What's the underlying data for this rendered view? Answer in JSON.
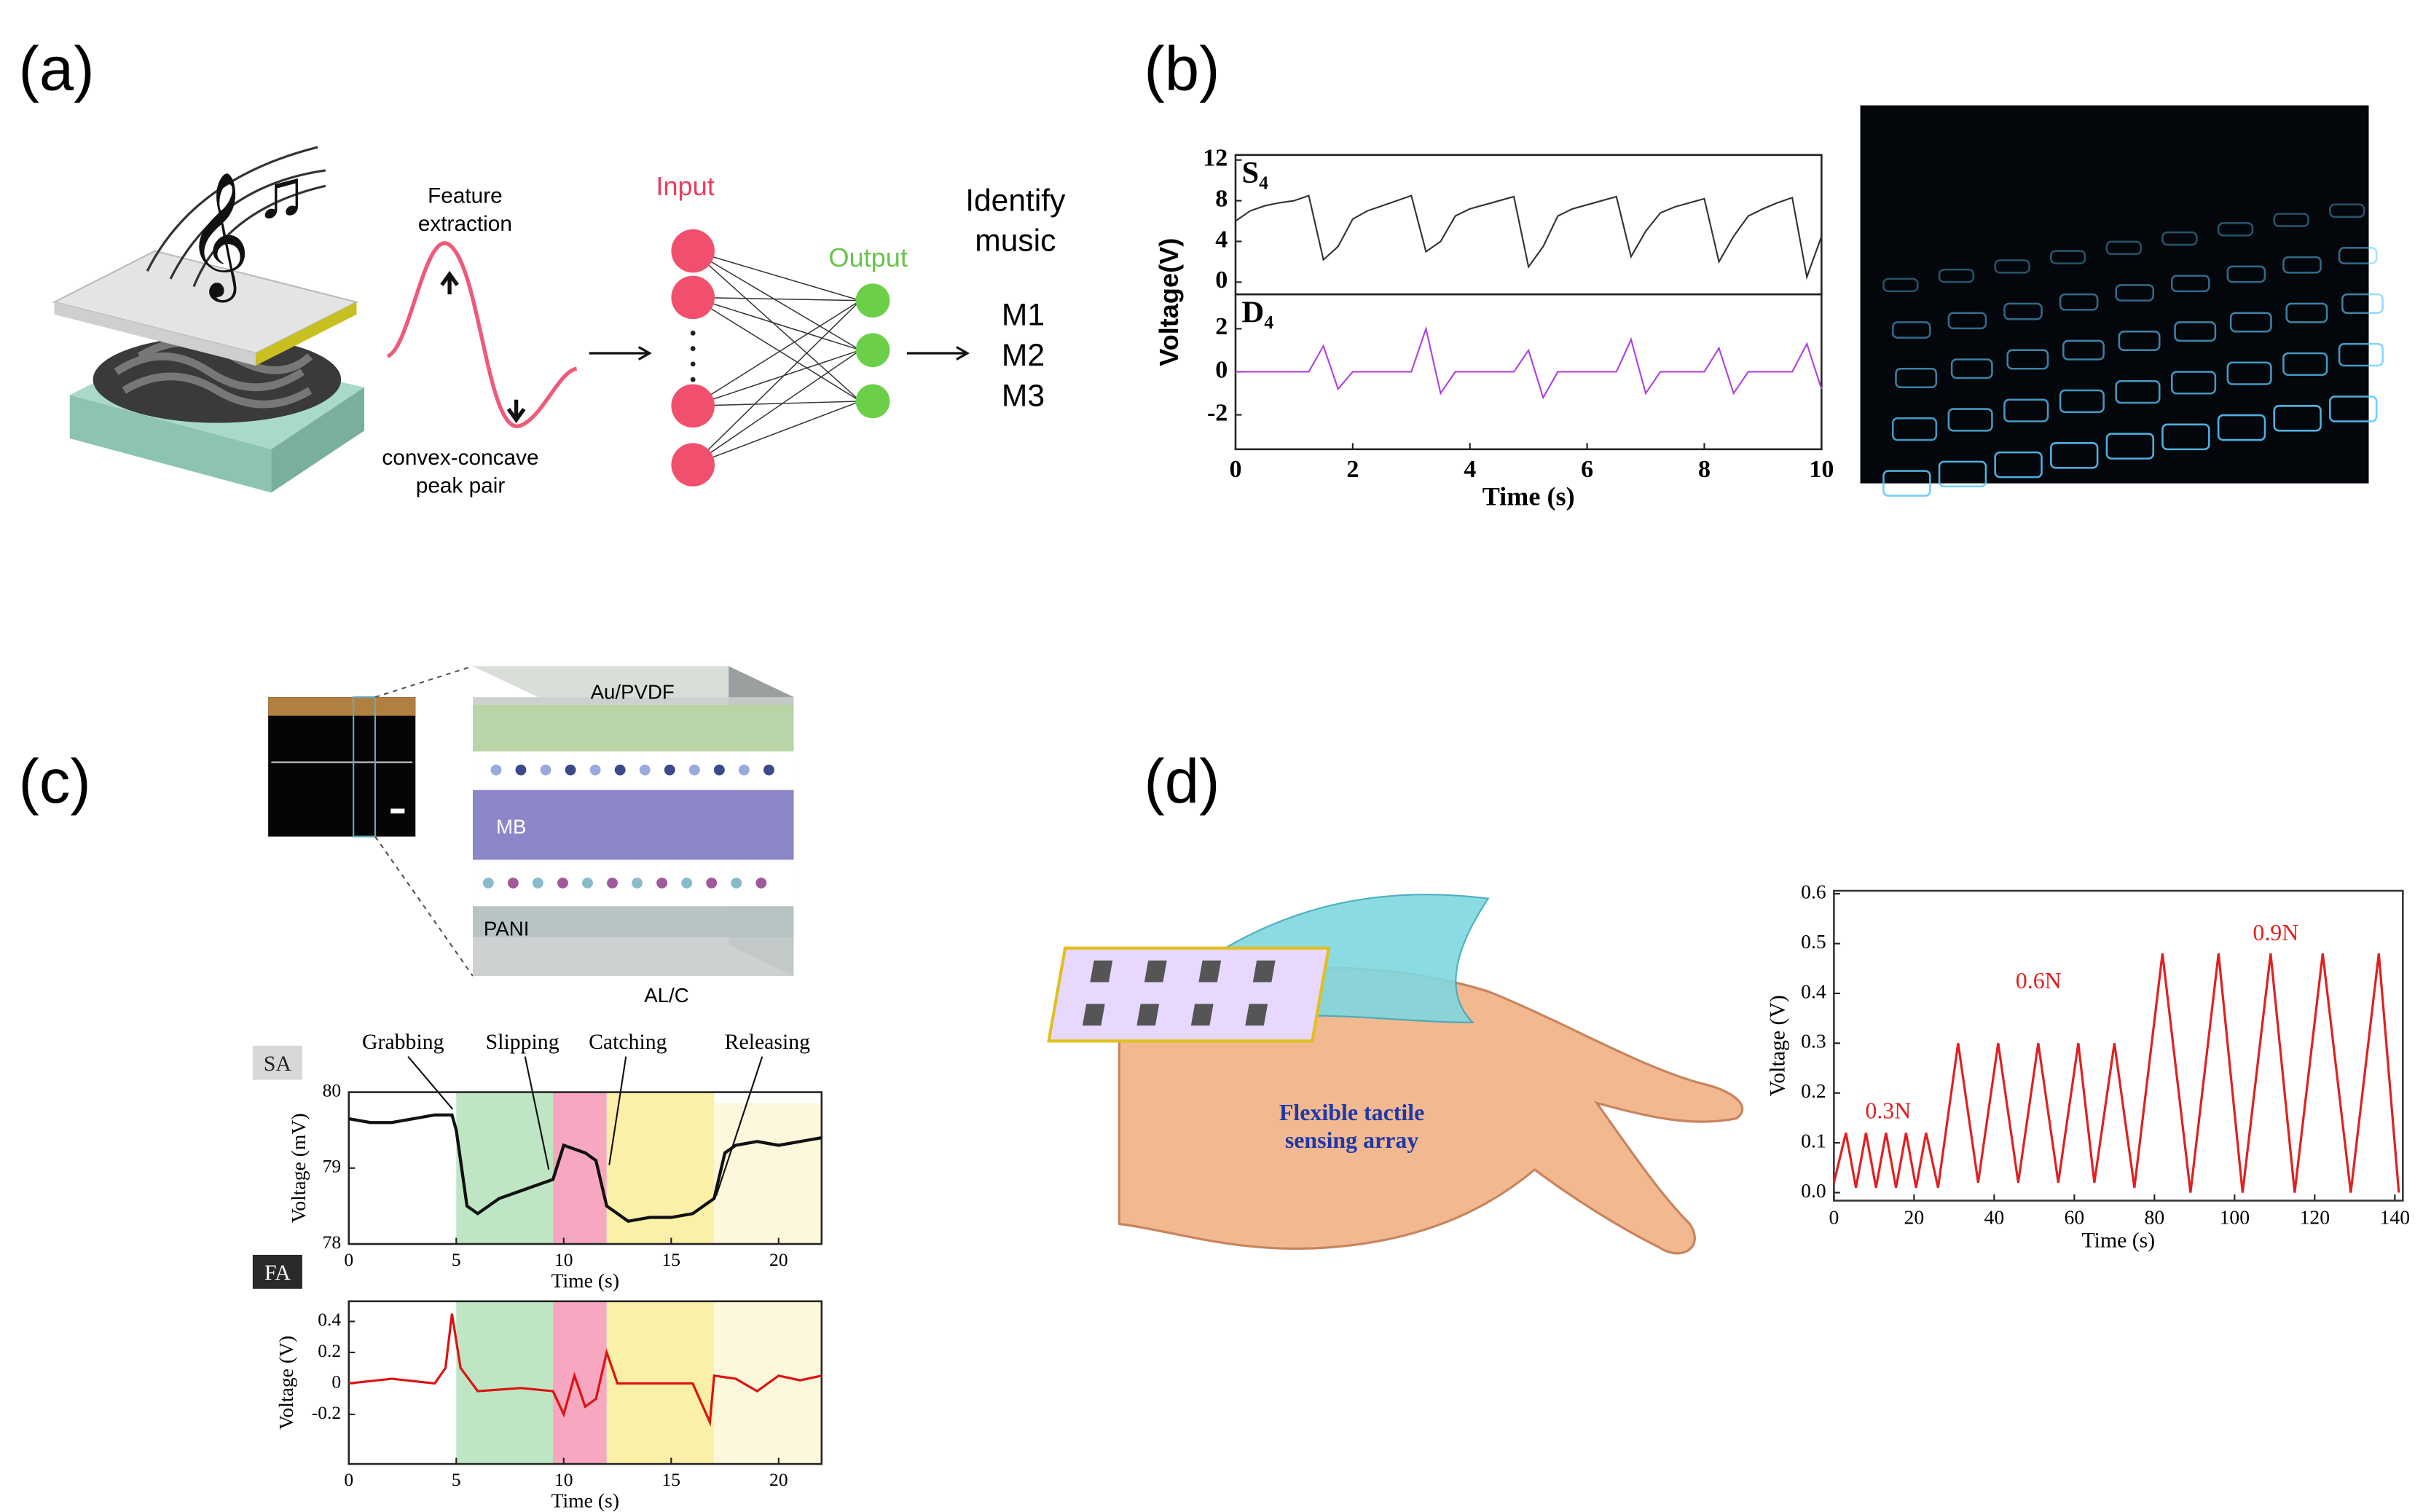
{
  "panel_labels": [
    "(a)",
    "(b)",
    "(c)",
    "(d)"
  ],
  "panel_a": {
    "feature_label": [
      "Feature",
      "extraction"
    ],
    "peak_label": [
      "convex-concave",
      "peak pair"
    ],
    "input_label": "Input",
    "output_label": "Output",
    "identify_label": [
      "Identify",
      "music"
    ],
    "outputs": [
      "M1",
      "M2",
      "M3"
    ]
  },
  "panel_b": {
    "y_label": "Voltage(V)"
  },
  "panel_c": {
    "layers": [
      "Au/PVDF",
      "MB",
      "PANI",
      "AL/C"
    ]
  },
  "panel_d": {
    "array_label": [
      "Flexible tactile",
      "sensing array"
    ]
  },
  "chart_data": [
    {
      "type": "line",
      "label": "S₄",
      "xlim": [
        0,
        10
      ],
      "ylim": [
        -1.2,
        12.5
      ],
      "yticks": [
        0,
        4,
        8,
        12
      ],
      "series": [
        {
          "color": "#333333",
          "x": [
            0,
            0.25,
            0.5,
            0.75,
            1,
            1.25,
            1.5,
            1.75,
            2,
            2.25,
            2.5,
            2.75,
            3,
            3.25,
            3.5,
            3.75,
            4,
            4.25,
            4.5,
            4.75,
            5,
            5.25,
            5.5,
            5.75,
            6,
            6.25,
            6.5,
            6.75,
            7,
            7.25,
            7.5,
            7.75,
            8,
            8.25,
            8.5,
            8.75,
            9,
            9.25,
            9.5,
            9.75,
            10
          ],
          "values": [
            6,
            7,
            7.5,
            7.8,
            8,
            8.5,
            2.2,
            3.5,
            6.2,
            7,
            7.5,
            8,
            8.5,
            3,
            4,
            6.5,
            7.2,
            7.6,
            8,
            8.4,
            1.5,
            3.5,
            6.5,
            7.2,
            7.6,
            8,
            8.4,
            2.5,
            5,
            6.8,
            7.4,
            7.8,
            8.2,
            2,
            4.5,
            6.5,
            7.2,
            7.8,
            8.3,
            0.5,
            4.5
          ]
        }
      ]
    },
    {
      "type": "line",
      "label": "D₄",
      "x_label": "Time (s)",
      "xlim": [
        0,
        10
      ],
      "ylim": [
        -3.6,
        3.6
      ],
      "xticks": [
        0,
        2,
        4,
        6,
        8,
        10
      ],
      "yticks": [
        -2,
        0,
        2
      ],
      "series": [
        {
          "color": "#b040e0",
          "x": [
            0,
            0.25,
            0.5,
            0.75,
            1,
            1.25,
            1.5,
            1.75,
            2,
            2.25,
            2.5,
            2.75,
            3,
            3.25,
            3.5,
            3.75,
            4,
            4.25,
            4.5,
            4.75,
            5,
            5.25,
            5.5,
            5.75,
            6,
            6.25,
            6.5,
            6.75,
            7,
            7.25,
            7.5,
            7.75,
            8,
            8.25,
            8.5,
            8.75,
            9,
            9.25,
            9.5,
            9.75,
            10
          ],
          "values": [
            0,
            0,
            0,
            0,
            0,
            0,
            1.2,
            -0.8,
            0,
            0,
            0,
            0,
            0,
            2,
            -1,
            0,
            0,
            0,
            0,
            0,
            1,
            -1.2,
            0,
            0,
            0,
            0,
            0,
            1.5,
            -1,
            0,
            0,
            0,
            0,
            1.1,
            -1,
            0,
            0,
            0,
            0,
            1.3,
            -0.8
          ]
        }
      ]
    },
    {
      "type": "line",
      "tag": "SA",
      "x_label": "Time (s)",
      "y_label": "Voltage (mV)",
      "xlim": [
        0,
        22
      ],
      "ylim": [
        78,
        80
      ],
      "xticks": [
        0,
        5,
        10,
        15,
        20
      ],
      "yticks": [
        78,
        79,
        80
      ],
      "annotations": [
        "Grabbing",
        "Slipping",
        "Catching",
        "Releasing"
      ],
      "regions": [
        {
          "start": 5,
          "end": 9.5,
          "color": "#bfe6c4"
        },
        {
          "start": 9.5,
          "end": 12,
          "color": "#f7a8c0"
        },
        {
          "start": 12,
          "end": 17,
          "color": "#fbf0a8"
        },
        {
          "start": 17,
          "end": 22,
          "color": "#fdf8dc"
        }
      ],
      "series": [
        {
          "color": "#111111",
          "x": [
            0,
            1,
            2,
            3,
            4,
            4.8,
            5,
            5.5,
            6,
            7,
            8,
            9,
            9.5,
            10,
            11,
            11.5,
            12,
            13,
            14,
            15,
            16,
            17,
            17.5,
            18,
            19,
            20,
            21,
            22
          ],
          "values": [
            79.65,
            79.6,
            79.6,
            79.65,
            79.7,
            79.7,
            79.5,
            78.5,
            78.4,
            78.6,
            78.7,
            78.8,
            78.85,
            79.3,
            79.2,
            79.1,
            78.5,
            78.3,
            78.35,
            78.35,
            78.4,
            78.6,
            79.2,
            79.3,
            79.35,
            79.3,
            79.35,
            79.4
          ]
        }
      ]
    },
    {
      "type": "line",
      "tag": "FA",
      "x_label": "Time (s)",
      "y_label": "Voltage (V)",
      "xlim": [
        0,
        22
      ],
      "ylim": [
        -0.52,
        0.53
      ],
      "xticks": [
        0,
        5,
        10,
        15,
        20
      ],
      "yticks": [
        -0.2,
        0,
        0.2,
        0.4
      ],
      "regions": [
        {
          "start": 5,
          "end": 9.5,
          "color": "#bfe6c4"
        },
        {
          "start": 9.5,
          "end": 12,
          "color": "#f7a8c0"
        },
        {
          "start": 12,
          "end": 17,
          "color": "#fbf0a8"
        },
        {
          "start": 17,
          "end": 22,
          "color": "#fdf8dc"
        }
      ],
      "series": [
        {
          "color": "#dd1111",
          "x": [
            0,
            2,
            4,
            4.5,
            4.8,
            5.2,
            6,
            8,
            9.5,
            10,
            10.5,
            11,
            11.5,
            12,
            12.5,
            14,
            16,
            16.8,
            17,
            18,
            19,
            20,
            21,
            22
          ],
          "values": [
            0,
            0.03,
            0,
            0.1,
            0.45,
            0.1,
            -0.05,
            -0.03,
            -0.05,
            -0.2,
            0.05,
            -0.15,
            -0.1,
            0.2,
            0,
            0,
            0,
            -0.25,
            0.05,
            0.03,
            -0.05,
            0.05,
            0.02,
            0.05
          ]
        }
      ]
    },
    {
      "type": "line",
      "x_label": "Time (s)",
      "y_label": "Voltage (V)",
      "xlim": [
        0,
        142
      ],
      "ylim": [
        -0.016,
        0.606
      ],
      "xticks": [
        0,
        20,
        40,
        60,
        80,
        100,
        120,
        140
      ],
      "yticks": [
        {
          "value": 0,
          "label": "0.0"
        },
        0.1,
        0.2,
        0.3,
        0.4,
        0.5,
        0.6
      ],
      "annotations": [
        "0.3N",
        "0.6N",
        "0.9N"
      ],
      "series": [
        {
          "color": "#e02020",
          "x": [
            0,
            3,
            5.5,
            8,
            10.5,
            13,
            15.5,
            18,
            20.5,
            23,
            26,
            31,
            36,
            41,
            46,
            51,
            56,
            61,
            65,
            70,
            75,
            82,
            89,
            96,
            102,
            109,
            115,
            122,
            129,
            136,
            141
          ],
          "values": [
            0.02,
            0.12,
            0.01,
            0.12,
            0.01,
            0.12,
            0.01,
            0.12,
            0.01,
            0.12,
            0.01,
            0.3,
            0.02,
            0.3,
            0.02,
            0.3,
            0.02,
            0.3,
            0.02,
            0.3,
            0.01,
            0.48,
            0,
            0.48,
            0,
            0.48,
            0,
            0.48,
            0,
            0.48,
            0
          ]
        }
      ]
    }
  ]
}
